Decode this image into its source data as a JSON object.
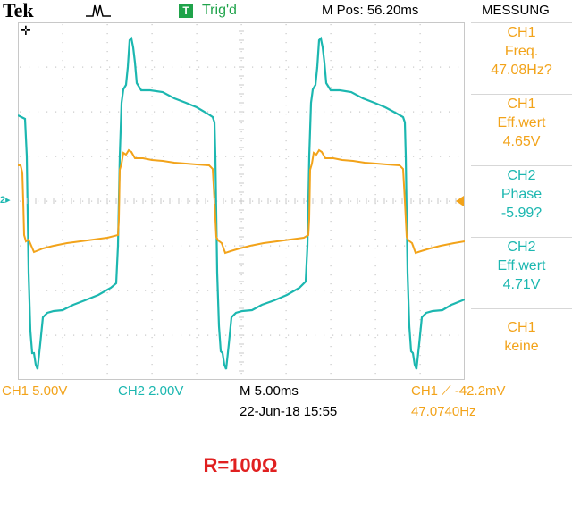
{
  "header": {
    "brand": "Tek",
    "trigger_state": "Trig'd",
    "trigger_icon_label": "T",
    "horizontal_position": "M Pos: 56.20ms",
    "menu_title": "MESSUNG"
  },
  "measurements": [
    {
      "channel": "CH1",
      "name": "Freq.",
      "value": "47.08Hz?"
    },
    {
      "channel": "CH1",
      "name": "Eff.wert",
      "value": "4.65V"
    },
    {
      "channel": "CH2",
      "name": "Phase",
      "value": "-5.99?"
    },
    {
      "channel": "CH2",
      "name": "Eff.wert",
      "value": "4.71V"
    },
    {
      "channel": "CH1",
      "name": "",
      "value": "keine"
    }
  ],
  "footer": {
    "ch1_scale": "CH1  5.00V",
    "ch2_scale": "CH2  2.00V",
    "time_scale": "M 5.00ms",
    "date_time": "22-Jun-18 15:55",
    "trigger_info": "CH1 ⟋ -42.2mV",
    "frequency": "47.0740Hz"
  },
  "markers": {
    "ch2_ground": "2▸"
  },
  "caption": "R=100Ω",
  "colors": {
    "ch1": "#f2a31a",
    "ch2": "#1cb7b0",
    "grid": "#c8c8c8",
    "trig": "#1fa34a",
    "caption": "#e02020"
  }
}
